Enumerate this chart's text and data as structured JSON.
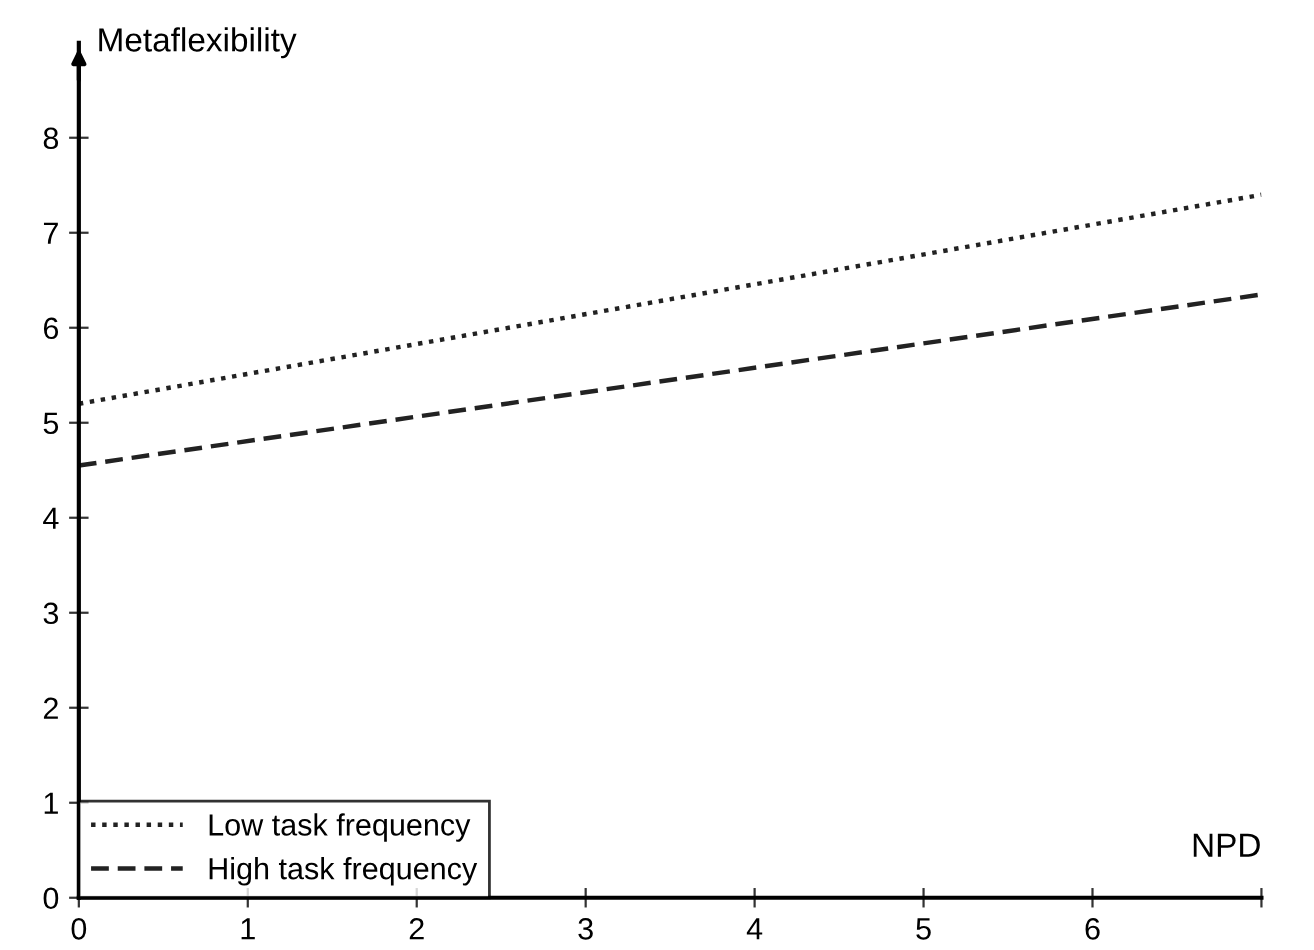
{
  "chart_data": {
    "type": "line",
    "xlabel": "NPD",
    "ylabel": "Metaflexibility",
    "x": [
      0,
      7
    ],
    "series": [
      {
        "name": "Low task frequency",
        "color": "#222222",
        "values": [
          5.2,
          7.4
        ],
        "line_style": "dotted"
      },
      {
        "name": "High task frequency",
        "color": "#222222",
        "values": [
          4.55,
          6.35
        ],
        "line_style": "dashed"
      }
    ],
    "xlim": [
      0,
      7
    ],
    "ylim": [
      0,
      9
    ],
    "xticks": [
      0,
      1,
      2,
      3,
      4,
      5,
      6,
      {
        "value": 7,
        "label": null
      }
    ],
    "yticks": [
      0,
      1,
      2,
      3,
      4,
      5,
      6,
      7,
      8
    ],
    "grid": false,
    "legend": "bottom left",
    "marker": "none"
  }
}
